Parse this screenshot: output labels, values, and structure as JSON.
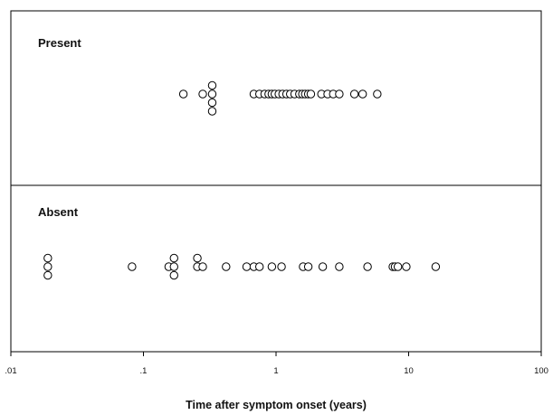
{
  "chart_data": {
    "type": "scatter",
    "title": "",
    "xlabel": "Time after symptom onset (years)",
    "ylabel": "",
    "x_scale": "log",
    "xlim": [
      0.01,
      100
    ],
    "x_ticks": [
      0.01,
      0.1,
      1,
      10,
      100
    ],
    "x_tick_labels": [
      ".01",
      ".1",
      "1",
      "10",
      "100"
    ],
    "grid": false,
    "legend": "none",
    "marker": "open-circle",
    "colors": {
      "marker_stroke": "#000000",
      "marker_fill": "#ffffff",
      "axis": "#000000"
    },
    "panels": [
      {
        "label": "Present",
        "x": [
          0.2,
          0.28,
          0.33,
          0.33,
          0.33,
          0.33,
          0.68,
          0.75,
          0.82,
          0.88,
          0.93,
          0.98,
          1.05,
          1.12,
          1.2,
          1.28,
          1.38,
          1.5,
          1.58,
          1.66,
          1.75,
          1.83,
          2.2,
          2.45,
          2.7,
          3.0,
          3.9,
          4.5,
          5.8
        ],
        "stack": [
          0,
          0,
          -1,
          0,
          1,
          2,
          0,
          0,
          0,
          0,
          0,
          0,
          0,
          0,
          0,
          0,
          0,
          0,
          0,
          0,
          0,
          0,
          0,
          0,
          0,
          0,
          0,
          0,
          0
        ]
      },
      {
        "label": "Absent",
        "x": [
          0.019,
          0.019,
          0.019,
          0.082,
          0.155,
          0.17,
          0.17,
          0.17,
          0.255,
          0.255,
          0.28,
          0.42,
          0.6,
          0.68,
          0.75,
          0.93,
          1.1,
          1.6,
          1.75,
          2.25,
          3.0,
          4.9,
          7.6,
          7.9,
          8.3,
          9.6,
          16.0
        ],
        "stack": [
          -1,
          0,
          1,
          0,
          0,
          -1,
          0,
          1,
          0,
          -1,
          0,
          0,
          0,
          0,
          0,
          0,
          0,
          0,
          0,
          0,
          0,
          0,
          0,
          0,
          0,
          0,
          0
        ]
      }
    ]
  }
}
